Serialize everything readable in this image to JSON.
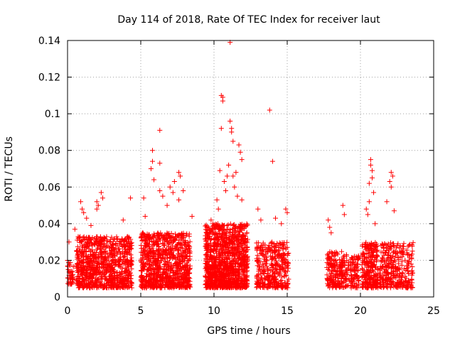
{
  "chart_data": {
    "type": "scatter",
    "title": "Day 114 of 2018, Rate Of TEC Index for receiver laut",
    "xlabel": "GPS time / hours",
    "ylabel": "ROTI / TECUs",
    "xlim": [
      0,
      25
    ],
    "ylim": [
      0,
      0.14
    ],
    "xticks": [
      0,
      5,
      10,
      15,
      20,
      25
    ],
    "yticks": [
      0,
      0.02,
      0.04,
      0.06,
      0.08,
      0.1,
      0.12,
      0.14
    ],
    "xtick_labels": [
      "0",
      "5",
      "10",
      "15",
      "20",
      "25"
    ],
    "ytick_labels": [
      "0",
      "0.02",
      "0.04",
      "0.06",
      "0.08",
      "0.1",
      "0.12",
      "0.14"
    ],
    "grid": true,
    "marker": "+",
    "color": "#ff0000",
    "series": [
      {
        "name": "ROTI",
        "clusters": [
          {
            "x_start": 0.0,
            "x_end": 0.4,
            "count": 40,
            "y_min": 0.007,
            "y_max": 0.02
          },
          {
            "x_start": 0.6,
            "x_end": 4.4,
            "count": 900,
            "y_min": 0.005,
            "y_max": 0.033
          },
          {
            "x_start": 5.0,
            "x_end": 8.4,
            "count": 900,
            "y_min": 0.005,
            "y_max": 0.035
          },
          {
            "x_start": 9.4,
            "x_end": 12.3,
            "count": 1100,
            "y_min": 0.005,
            "y_max": 0.04
          },
          {
            "x_start": 12.9,
            "x_end": 15.1,
            "count": 350,
            "y_min": 0.005,
            "y_max": 0.03
          },
          {
            "x_start": 17.7,
            "x_end": 19.9,
            "count": 300,
            "y_min": 0.005,
            "y_max": 0.025
          },
          {
            "x_start": 20.1,
            "x_end": 21.2,
            "count": 260,
            "y_min": 0.005,
            "y_max": 0.03
          },
          {
            "x_start": 21.3,
            "x_end": 23.6,
            "count": 320,
            "y_min": 0.005,
            "y_max": 0.03
          }
        ],
        "points": [
          {
            "x": 0.1,
            "y": 0.03
          },
          {
            "x": 0.5,
            "y": 0.037
          },
          {
            "x": 0.9,
            "y": 0.052
          },
          {
            "x": 1.0,
            "y": 0.048
          },
          {
            "x": 1.1,
            "y": 0.046
          },
          {
            "x": 1.3,
            "y": 0.043
          },
          {
            "x": 1.6,
            "y": 0.039
          },
          {
            "x": 2.0,
            "y": 0.048
          },
          {
            "x": 2.0,
            "y": 0.052
          },
          {
            "x": 2.1,
            "y": 0.05
          },
          {
            "x": 2.3,
            "y": 0.057
          },
          {
            "x": 2.4,
            "y": 0.054
          },
          {
            "x": 3.8,
            "y": 0.042
          },
          {
            "x": 4.3,
            "y": 0.054
          },
          {
            "x": 5.2,
            "y": 0.054
          },
          {
            "x": 5.3,
            "y": 0.044
          },
          {
            "x": 5.7,
            "y": 0.07
          },
          {
            "x": 5.8,
            "y": 0.074
          },
          {
            "x": 5.8,
            "y": 0.08
          },
          {
            "x": 5.9,
            "y": 0.064
          },
          {
            "x": 6.3,
            "y": 0.091
          },
          {
            "x": 6.3,
            "y": 0.073
          },
          {
            "x": 6.3,
            "y": 0.058
          },
          {
            "x": 6.5,
            "y": 0.055
          },
          {
            "x": 6.8,
            "y": 0.05
          },
          {
            "x": 7.0,
            "y": 0.06
          },
          {
            "x": 7.2,
            "y": 0.057
          },
          {
            "x": 7.3,
            "y": 0.063
          },
          {
            "x": 7.6,
            "y": 0.068
          },
          {
            "x": 7.7,
            "y": 0.066
          },
          {
            "x": 7.6,
            "y": 0.053
          },
          {
            "x": 7.9,
            "y": 0.058
          },
          {
            "x": 8.5,
            "y": 0.044
          },
          {
            "x": 9.8,
            "y": 0.042
          },
          {
            "x": 10.2,
            "y": 0.053
          },
          {
            "x": 10.3,
            "y": 0.048
          },
          {
            "x": 10.4,
            "y": 0.069
          },
          {
            "x": 10.5,
            "y": 0.092
          },
          {
            "x": 10.5,
            "y": 0.11
          },
          {
            "x": 10.6,
            "y": 0.107
          },
          {
            "x": 10.6,
            "y": 0.109
          },
          {
            "x": 10.7,
            "y": 0.063
          },
          {
            "x": 10.8,
            "y": 0.058
          },
          {
            "x": 10.9,
            "y": 0.066
          },
          {
            "x": 11.0,
            "y": 0.072
          },
          {
            "x": 11.1,
            "y": 0.139
          },
          {
            "x": 11.1,
            "y": 0.096
          },
          {
            "x": 11.2,
            "y": 0.092
          },
          {
            "x": 11.2,
            "y": 0.09
          },
          {
            "x": 11.3,
            "y": 0.085
          },
          {
            "x": 11.3,
            "y": 0.066
          },
          {
            "x": 11.4,
            "y": 0.06
          },
          {
            "x": 11.5,
            "y": 0.068
          },
          {
            "x": 11.6,
            "y": 0.055
          },
          {
            "x": 11.7,
            "y": 0.083
          },
          {
            "x": 11.8,
            "y": 0.079
          },
          {
            "x": 11.9,
            "y": 0.075
          },
          {
            "x": 11.9,
            "y": 0.053
          },
          {
            "x": 13.0,
            "y": 0.048
          },
          {
            "x": 13.2,
            "y": 0.042
          },
          {
            "x": 13.8,
            "y": 0.102
          },
          {
            "x": 14.0,
            "y": 0.074
          },
          {
            "x": 14.2,
            "y": 0.043
          },
          {
            "x": 14.6,
            "y": 0.04
          },
          {
            "x": 14.9,
            "y": 0.048
          },
          {
            "x": 15.0,
            "y": 0.046
          },
          {
            "x": 17.8,
            "y": 0.042
          },
          {
            "x": 17.9,
            "y": 0.038
          },
          {
            "x": 18.0,
            "y": 0.035
          },
          {
            "x": 18.8,
            "y": 0.05
          },
          {
            "x": 18.9,
            "y": 0.045
          },
          {
            "x": 20.4,
            "y": 0.048
          },
          {
            "x": 20.5,
            "y": 0.045
          },
          {
            "x": 20.6,
            "y": 0.052
          },
          {
            "x": 20.6,
            "y": 0.062
          },
          {
            "x": 20.7,
            "y": 0.075
          },
          {
            "x": 20.7,
            "y": 0.072
          },
          {
            "x": 20.8,
            "y": 0.069
          },
          {
            "x": 20.8,
            "y": 0.065
          },
          {
            "x": 20.9,
            "y": 0.057
          },
          {
            "x": 21.0,
            "y": 0.04
          },
          {
            "x": 21.8,
            "y": 0.052
          },
          {
            "x": 22.0,
            "y": 0.063
          },
          {
            "x": 22.1,
            "y": 0.068
          },
          {
            "x": 22.2,
            "y": 0.066
          },
          {
            "x": 22.1,
            "y": 0.06
          },
          {
            "x": 22.3,
            "y": 0.047
          }
        ]
      }
    ]
  }
}
